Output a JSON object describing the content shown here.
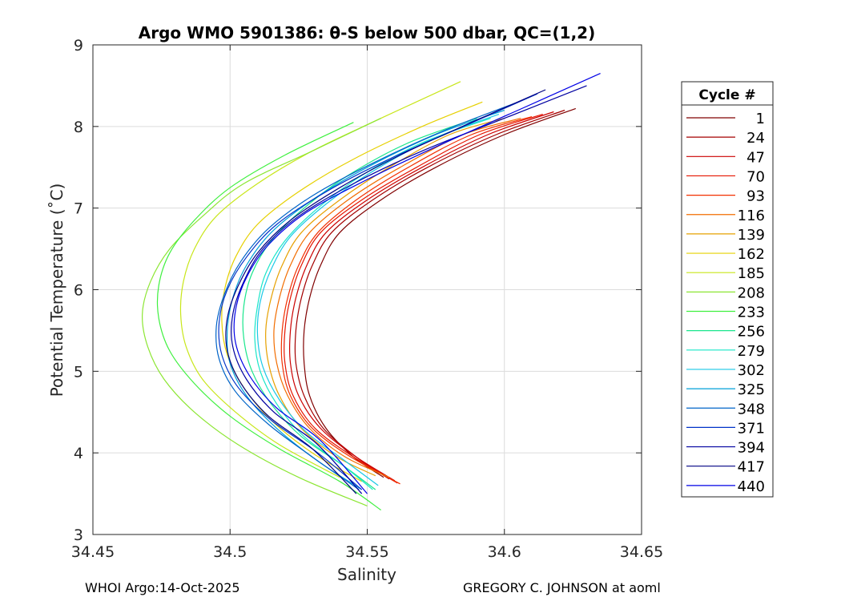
{
  "chart_data": {
    "type": "line",
    "title": "Argo WMO 5901386: θ-S below 500 dbar,  QC=(1,2)",
    "xlabel": "Salinity",
    "ylabel": "Potential Temperature (˚C)",
    "xlim": [
      34.45,
      34.65
    ],
    "ylim": [
      3,
      9
    ],
    "xticks": [
      34.45,
      34.5,
      34.55,
      34.6,
      34.65
    ],
    "xtick_labels": [
      "34.45",
      "34.5",
      "34.55",
      "34.6",
      "34.65"
    ],
    "yticks": [
      3,
      4,
      5,
      6,
      7,
      8,
      9
    ],
    "ytick_labels": [
      "3",
      "4",
      "5",
      "6",
      "7",
      "8",
      "9"
    ],
    "grid": true,
    "legend_title": "Cycle #",
    "legend_position": "right",
    "legend": [
      {
        "label": "1",
        "color": "#800000"
      },
      {
        "label": "24",
        "color": "#a40000"
      },
      {
        "label": "47",
        "color": "#cc0000"
      },
      {
        "label": "70",
        "color": "#e51400"
      },
      {
        "label": "93",
        "color": "#f23000"
      },
      {
        "label": "116",
        "color": "#f26d00"
      },
      {
        "label": "139",
        "color": "#e6a000"
      },
      {
        "label": "162",
        "color": "#e6d000"
      },
      {
        "label": "185",
        "color": "#c8e619"
      },
      {
        "label": "208",
        "color": "#8ce633"
      },
      {
        "label": "233",
        "color": "#3ff03f"
      },
      {
        "label": "256",
        "color": "#19e68c"
      },
      {
        "label": "279",
        "color": "#19e6c8"
      },
      {
        "label": "302",
        "color": "#19c8e6"
      },
      {
        "label": "325",
        "color": "#00a0d8"
      },
      {
        "label": "348",
        "color": "#0064c8"
      },
      {
        "label": "371",
        "color": "#0032c8"
      },
      {
        "label": "394",
        "color": "#0000a0"
      },
      {
        "label": "417",
        "color": "#000082"
      },
      {
        "label": "440",
        "color": "#0000e6"
      }
    ],
    "series": [
      {
        "name": "1",
        "color": "#800000",
        "x": [
          34.626,
          34.6,
          34.575,
          34.555,
          34.54,
          34.533,
          34.529,
          34.527,
          34.527,
          34.529,
          34.535,
          34.545,
          34.556
        ],
        "y": [
          8.22,
          7.9,
          7.5,
          7.1,
          6.7,
          6.3,
          5.9,
          5.5,
          5.1,
          4.7,
          4.3,
          3.95,
          3.7
        ]
      },
      {
        "name": "24",
        "color": "#a40000",
        "x": [
          34.622,
          34.597,
          34.572,
          34.552,
          34.537,
          34.53,
          34.526,
          34.524,
          34.524,
          34.527,
          34.534,
          34.546,
          34.558
        ],
        "y": [
          8.2,
          7.9,
          7.5,
          7.1,
          6.7,
          6.3,
          5.9,
          5.5,
          5.1,
          4.7,
          4.3,
          3.95,
          3.68
        ]
      },
      {
        "name": "47",
        "color": "#cc0000",
        "x": [
          34.618,
          34.594,
          34.57,
          34.55,
          34.535,
          34.528,
          34.524,
          34.522,
          34.522,
          34.525,
          34.533,
          34.546,
          34.56
        ],
        "y": [
          8.18,
          7.9,
          7.5,
          7.1,
          6.7,
          6.3,
          5.9,
          5.5,
          5.1,
          4.7,
          4.3,
          3.95,
          3.66
        ]
      },
      {
        "name": "70",
        "color": "#e51400",
        "x": [
          34.614,
          34.591,
          34.568,
          34.548,
          34.533,
          34.526,
          34.522,
          34.52,
          34.52,
          34.523,
          34.531,
          34.545,
          34.561
        ],
        "y": [
          8.15,
          7.9,
          7.5,
          7.1,
          6.7,
          6.3,
          5.9,
          5.5,
          5.1,
          4.7,
          4.3,
          3.95,
          3.63
        ]
      },
      {
        "name": "93",
        "color": "#f23000",
        "x": [
          34.61,
          34.588,
          34.565,
          34.546,
          34.532,
          34.525,
          34.521,
          34.519,
          34.519,
          34.522,
          34.53,
          34.544,
          34.562
        ],
        "y": [
          8.12,
          7.9,
          7.5,
          7.1,
          6.7,
          6.3,
          5.9,
          5.5,
          5.1,
          4.7,
          4.3,
          3.95,
          3.62
        ]
      },
      {
        "name": "116",
        "color": "#f26d00",
        "x": [
          34.606,
          34.585,
          34.562,
          34.543,
          34.529,
          34.522,
          34.518,
          34.516,
          34.517,
          34.521,
          34.529,
          34.542,
          34.558
        ],
        "y": [
          8.1,
          7.9,
          7.5,
          7.1,
          6.7,
          6.3,
          5.9,
          5.5,
          5.1,
          4.7,
          4.3,
          3.95,
          3.7
        ]
      },
      {
        "name": "139",
        "color": "#e6a000",
        "x": [
          34.6,
          34.58,
          34.558,
          34.54,
          34.526,
          34.519,
          34.515,
          34.513,
          34.514,
          34.518,
          34.526,
          34.539,
          34.553
        ],
        "y": [
          8.1,
          7.9,
          7.5,
          7.1,
          6.7,
          6.3,
          5.9,
          5.5,
          5.1,
          4.7,
          4.3,
          3.95,
          3.72
        ]
      },
      {
        "name": "162",
        "color": "#e6d000",
        "x": [
          34.592,
          34.57,
          34.545,
          34.525,
          34.51,
          34.502,
          34.498,
          34.497,
          34.499,
          34.505,
          34.515,
          34.53,
          34.548
        ],
        "y": [
          8.3,
          8.0,
          7.6,
          7.2,
          6.8,
          6.4,
          6.0,
          5.6,
          5.2,
          4.8,
          4.4,
          4.0,
          3.65
        ]
      },
      {
        "name": "185",
        "color": "#c8e619",
        "x": [
          34.584,
          34.555,
          34.53,
          34.51,
          34.495,
          34.487,
          34.483,
          34.482,
          34.484,
          34.49,
          34.502,
          34.518,
          34.54
        ],
        "y": [
          8.55,
          8.1,
          7.7,
          7.3,
          6.9,
          6.5,
          6.1,
          5.7,
          5.3,
          4.9,
          4.5,
          4.1,
          3.7
        ]
      },
      {
        "name": "208",
        "color": "#8ce633",
        "x": [
          34.555,
          34.53,
          34.505,
          34.49,
          34.478,
          34.471,
          34.468,
          34.47,
          34.476,
          34.487,
          34.503,
          34.525,
          34.55
        ],
        "y": [
          8.1,
          7.7,
          7.3,
          6.9,
          6.5,
          6.1,
          5.7,
          5.3,
          4.9,
          4.5,
          4.1,
          3.7,
          3.35
        ]
      },
      {
        "name": "233",
        "color": "#3ff03f",
        "x": [
          34.545,
          34.52,
          34.5,
          34.487,
          34.478,
          34.474,
          34.474,
          34.478,
          34.487,
          34.5,
          34.518,
          34.54,
          34.555
        ],
        "y": [
          8.05,
          7.65,
          7.25,
          6.85,
          6.45,
          6.05,
          5.65,
          5.25,
          4.85,
          4.45,
          4.05,
          3.65,
          3.3
        ]
      },
      {
        "name": "256",
        "color": "#19e68c",
        "x": [
          34.59,
          34.565,
          34.543,
          34.527,
          34.515,
          34.508,
          34.505,
          34.505,
          34.508,
          34.515,
          34.526,
          34.541,
          34.553
        ],
        "y": [
          8.1,
          7.8,
          7.4,
          7.0,
          6.6,
          6.2,
          5.8,
          5.4,
          5.0,
          4.6,
          4.2,
          3.85,
          3.55
        ]
      },
      {
        "name": "279",
        "color": "#19e6c8",
        "x": [
          34.595,
          34.57,
          34.548,
          34.532,
          34.52,
          34.513,
          34.51,
          34.509,
          34.511,
          34.517,
          34.527,
          34.541,
          34.552
        ],
        "y": [
          8.1,
          7.8,
          7.4,
          7.0,
          6.6,
          6.2,
          5.8,
          5.4,
          5.0,
          4.6,
          4.2,
          3.85,
          3.55
        ]
      },
      {
        "name": "302",
        "color": "#19c8e6",
        "x": [
          34.598,
          34.574,
          34.552,
          34.535,
          34.522,
          34.515,
          34.511,
          34.51,
          34.512,
          34.518,
          34.528,
          34.542,
          34.554
        ],
        "y": [
          8.15,
          7.85,
          7.45,
          7.05,
          6.65,
          6.25,
          5.85,
          5.45,
          5.05,
          4.65,
          4.25,
          3.9,
          3.6
        ]
      },
      {
        "name": "325",
        "color": "#00a0d8",
        "x": [
          34.6,
          34.575,
          34.55,
          34.53,
          34.515,
          34.506,
          34.501,
          34.499,
          34.5,
          34.506,
          34.517,
          34.532,
          34.548
        ],
        "y": [
          8.2,
          7.9,
          7.5,
          7.1,
          6.7,
          6.3,
          5.9,
          5.5,
          5.1,
          4.7,
          4.3,
          3.9,
          3.55
        ]
      },
      {
        "name": "348",
        "color": "#0064c8",
        "x": [
          34.605,
          34.578,
          34.552,
          34.53,
          34.514,
          34.504,
          34.498,
          34.495,
          34.496,
          34.502,
          34.514,
          34.53,
          34.547
        ],
        "y": [
          8.3,
          7.95,
          7.55,
          7.15,
          6.75,
          6.35,
          5.95,
          5.55,
          5.15,
          4.75,
          4.35,
          3.95,
          3.55
        ]
      },
      {
        "name": "371",
        "color": "#0032c8",
        "x": [
          34.612,
          34.585,
          34.558,
          34.535,
          34.517,
          34.506,
          34.499,
          34.496,
          34.497,
          34.503,
          34.515,
          34.532,
          34.548
        ],
        "y": [
          8.4,
          8.0,
          7.6,
          7.2,
          6.8,
          6.4,
          6.0,
          5.6,
          5.2,
          4.8,
          4.4,
          4.0,
          3.55
        ]
      },
      {
        "name": "394",
        "color": "#0000a0",
        "x": [
          34.63,
          34.6,
          34.57,
          34.545,
          34.525,
          34.512,
          34.505,
          34.501,
          34.501,
          34.506,
          34.516,
          34.532,
          34.548
        ],
        "y": [
          8.5,
          8.1,
          7.7,
          7.3,
          6.9,
          6.5,
          6.1,
          5.7,
          5.3,
          4.9,
          4.5,
          4.1,
          3.5
        ]
      },
      {
        "name": "417",
        "color": "#000082",
        "x": [
          34.615,
          34.588,
          34.562,
          34.54,
          34.522,
          34.51,
          34.503,
          34.499,
          34.499,
          34.504,
          34.514,
          34.53,
          34.546
        ],
        "y": [
          8.45,
          8.05,
          7.65,
          7.25,
          6.85,
          6.45,
          6.05,
          5.65,
          5.25,
          4.85,
          4.45,
          4.05,
          3.5
        ]
      },
      {
        "name": "440",
        "color": "#0000e6",
        "x": [
          34.635,
          34.605,
          34.575,
          34.55,
          34.528,
          34.514,
          34.506,
          34.502,
          34.502,
          34.507,
          34.517,
          34.533,
          34.55
        ],
        "y": [
          8.65,
          8.2,
          7.75,
          7.35,
          6.95,
          6.55,
          6.15,
          5.75,
          5.35,
          4.95,
          4.55,
          4.15,
          3.5
        ]
      }
    ]
  },
  "footer": {
    "left": "WHOI Argo:14-Oct-2025",
    "right": "GREGORY C. JOHNSON at aoml"
  }
}
